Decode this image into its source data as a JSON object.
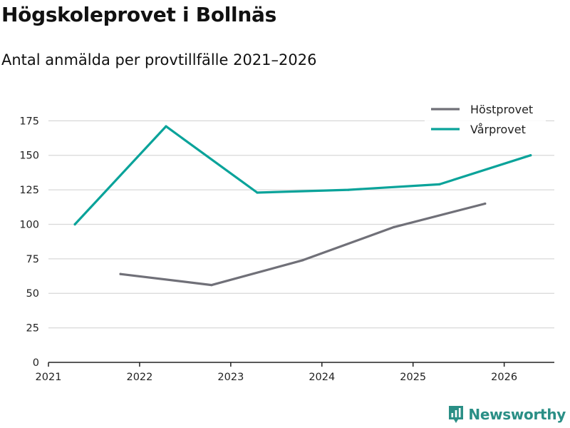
{
  "colors": {
    "hostprovet": "#707078",
    "varprovet": "#0aa39a",
    "brand": "#2a8f86",
    "grid": "#d8d8d8",
    "axis": "#222222"
  },
  "chart_data": {
    "type": "line",
    "title": "Högskoleprovet i Bollnäs",
    "subtitle": "Antal anmälda per provtillfälle 2021–2026",
    "xlabel": "",
    "ylabel": "",
    "xlim": [
      2021,
      2026.55
    ],
    "ylim": [
      0,
      185
    ],
    "x_ticks": [
      2021,
      2022,
      2023,
      2024,
      2025,
      2026
    ],
    "y_ticks": [
      0,
      25,
      50,
      75,
      100,
      125,
      150,
      175
    ],
    "grid": true,
    "legend_position": "top-right",
    "series": [
      {
        "name": "Höstprovet",
        "color_key": "hostprovet",
        "points": [
          {
            "x": 2021.79,
            "y": 64
          },
          {
            "x": 2022.79,
            "y": 56
          },
          {
            "x": 2023.79,
            "y": 74
          },
          {
            "x": 2024.79,
            "y": 98
          },
          {
            "x": 2025.79,
            "y": 115
          }
        ]
      },
      {
        "name": "Vårprovet",
        "color_key": "varprovet",
        "points": [
          {
            "x": 2021.29,
            "y": 100
          },
          {
            "x": 2022.29,
            "y": 171
          },
          {
            "x": 2023.29,
            "y": 123
          },
          {
            "x": 2024.29,
            "y": 125
          },
          {
            "x": 2025.29,
            "y": 129
          },
          {
            "x": 2026.29,
            "y": 150
          }
        ]
      }
    ]
  },
  "brand": {
    "name": "Newsworthy"
  }
}
